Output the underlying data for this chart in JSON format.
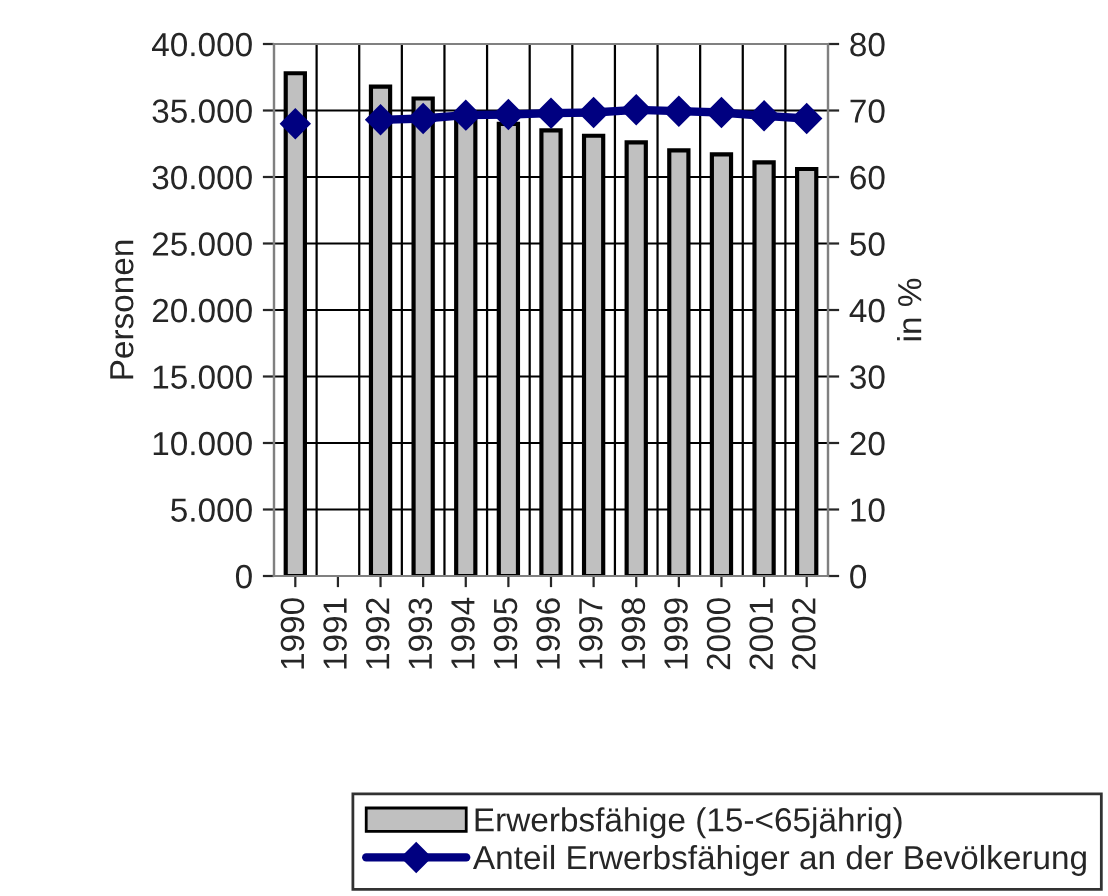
{
  "chart_data": {
    "type": "bar",
    "ylabel": "Personen",
    "y2label": "in %",
    "categories": [
      "1990",
      "1991",
      "1992",
      "1993",
      "1994",
      "1995",
      "1996",
      "1997",
      "1998",
      "1999",
      "2000",
      "2001",
      "2002"
    ],
    "series": [
      {
        "name": "Erwerbsfähige (15-<65jährig)",
        "color": "#c0c0c0",
        "values": [
          37800,
          null,
          36800,
          35900,
          34500,
          34000,
          33500,
          33100,
          32600,
          32000,
          31700,
          31100,
          30600
        ]
      },
      {
        "name": "Anteil Erwerbsfähiger an der Bevölkerung",
        "type": "line",
        "axis": "y2",
        "color": "#000080",
        "marker": "diamond",
        "values": [
          68.0,
          null,
          68.6,
          68.8,
          69.3,
          69.4,
          69.6,
          69.7,
          70.1,
          69.9,
          69.7,
          69.2,
          68.8
        ]
      }
    ],
    "ylim": [
      0,
      40000
    ],
    "yticks": [
      {
        "value": 0,
        "label": "0"
      },
      {
        "value": 5000,
        "label": "5.000"
      },
      {
        "value": 10000,
        "label": "10.000"
      },
      {
        "value": 15000,
        "label": "15.000"
      },
      {
        "value": 20000,
        "label": "20.000"
      },
      {
        "value": 25000,
        "label": "25.000"
      },
      {
        "value": 30000,
        "label": "30.000"
      },
      {
        "value": 35000,
        "label": "35.000"
      },
      {
        "value": 40000,
        "label": "40.000"
      }
    ],
    "y2lim": [
      0,
      80
    ],
    "y2ticks": [
      0,
      10,
      20,
      30,
      40,
      50,
      60,
      70,
      80
    ],
    "grid": true,
    "legend": "bottom"
  }
}
